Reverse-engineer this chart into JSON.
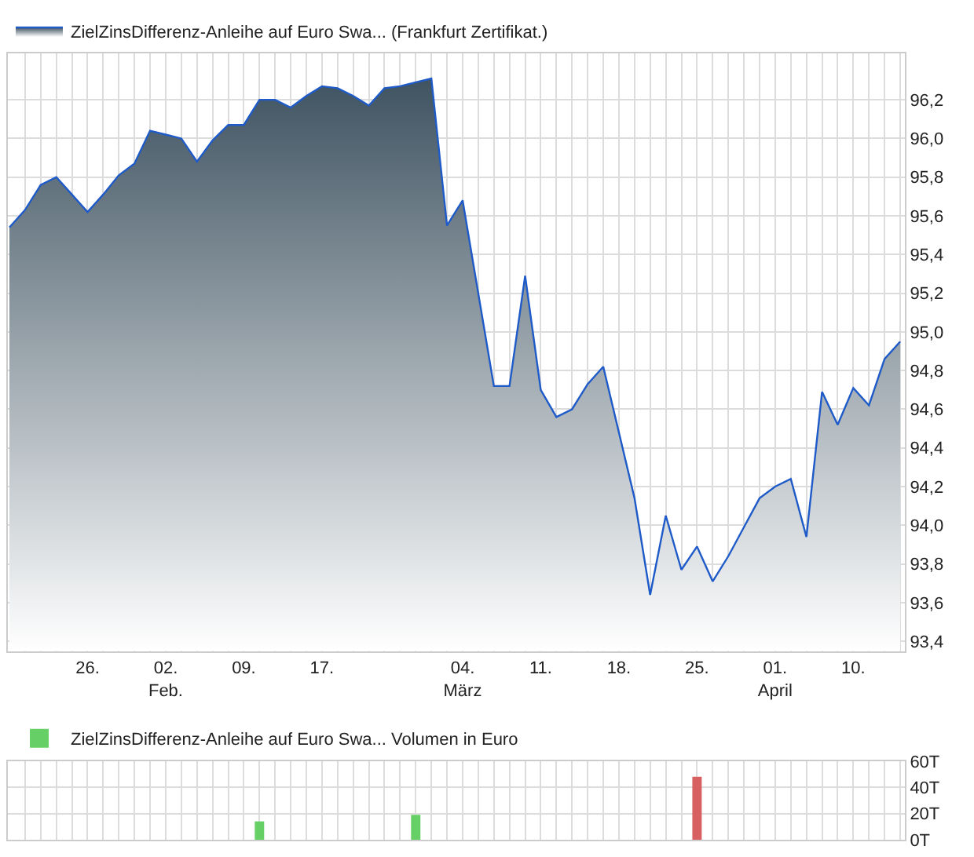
{
  "chart_data": [
    {
      "type": "area",
      "legend": "top left",
      "grid": true,
      "marker": "none",
      "categories": [
        null,
        null,
        null,
        null,
        null,
        "26.",
        null,
        null,
        null,
        null,
        "02.\nFeb.",
        null,
        null,
        null,
        null,
        "09.",
        null,
        null,
        null,
        null,
        "17.",
        null,
        null,
        null,
        null,
        null,
        null,
        null,
        null,
        "04.\nMärz",
        null,
        null,
        null,
        null,
        "11.",
        null,
        null,
        null,
        null,
        "18.",
        null,
        null,
        null,
        null,
        "25.",
        null,
        null,
        null,
        null,
        "01.\nApril",
        null,
        null,
        null,
        null,
        "10.",
        null,
        null,
        null
      ],
      "series": [
        {
          "name": "ZielZinsDifferenz-Anleihe auf Euro Swa... (Frankfurt Zertifikat.)",
          "color": "#1f5bc8",
          "values": [
            95.54,
            95.63,
            95.76,
            95.8,
            95.71,
            95.62,
            95.71,
            95.81,
            95.87,
            96.04,
            96.02,
            96.0,
            95.88,
            95.99,
            96.07,
            96.07,
            96.2,
            96.2,
            96.16,
            96.22,
            96.27,
            96.26,
            96.22,
            96.17,
            96.26,
            96.27,
            96.29,
            96.31,
            95.55,
            95.68,
            95.2,
            94.72,
            94.72,
            95.29,
            94.7,
            94.56,
            94.6,
            94.73,
            94.82,
            94.48,
            94.14,
            93.64,
            94.05,
            93.77,
            93.89,
            93.71,
            93.84,
            93.99,
            94.14,
            94.2,
            94.24,
            93.94,
            94.69,
            94.52,
            94.71,
            94.62,
            94.86,
            94.95
          ]
        }
      ],
      "ylim": [
        93.35,
        96.44
      ],
      "yticks": [
        {
          "value": 93.4,
          "label": "93,4"
        },
        {
          "value": 93.6,
          "label": "93,6"
        },
        {
          "value": 93.8,
          "label": "93,8"
        },
        {
          "value": 94.0,
          "label": "94,0"
        },
        {
          "value": 94.2,
          "label": "94,2"
        },
        {
          "value": 94.4,
          "label": "94,4"
        },
        {
          "value": 94.6,
          "label": "94,6"
        },
        {
          "value": 94.8,
          "label": "94,8"
        },
        {
          "value": 95.0,
          "label": "95,0"
        },
        {
          "value": 95.2,
          "label": "95,2"
        },
        {
          "value": 95.4,
          "label": "95,4"
        },
        {
          "value": 95.6,
          "label": "95,6"
        },
        {
          "value": 95.8,
          "label": "95,8"
        },
        {
          "value": 96.0,
          "label": "96,0"
        },
        {
          "value": 96.2,
          "label": "96,2"
        }
      ]
    },
    {
      "type": "bar",
      "legend": "top left",
      "grid": true,
      "tick_labels": "y",
      "categories": [
        null,
        null,
        null,
        null,
        null,
        null,
        null,
        null,
        null,
        null,
        null,
        null,
        null,
        null,
        null,
        null,
        null,
        null,
        null,
        null,
        null,
        null,
        null,
        null,
        null,
        null,
        null,
        null,
        null,
        null,
        null,
        null,
        null,
        null,
        null,
        null,
        null,
        null,
        null,
        null,
        null,
        null,
        null,
        null,
        null,
        null,
        null,
        null,
        null,
        null,
        null,
        null,
        null,
        null,
        null,
        null,
        null,
        null
      ],
      "series": [
        {
          "name": "ZielZinsDifferenz-Anleihe auf Euro Swa... Volumen in Euro",
          "color": "#66d066",
          "colors": [
            null,
            null,
            null,
            null,
            null,
            null,
            null,
            null,
            null,
            null,
            null,
            null,
            null,
            null,
            null,
            null,
            "#66d066",
            null,
            null,
            null,
            null,
            null,
            null,
            null,
            null,
            null,
            "#66d066",
            null,
            null,
            null,
            null,
            null,
            null,
            null,
            null,
            null,
            null,
            null,
            null,
            null,
            null,
            null,
            null,
            null,
            "#d96060",
            null,
            null,
            null,
            null,
            null,
            null,
            null,
            null,
            null,
            null,
            null,
            null,
            null
          ],
          "values": [
            null,
            null,
            null,
            null,
            null,
            null,
            null,
            null,
            null,
            null,
            null,
            null,
            null,
            null,
            null,
            null,
            14,
            null,
            null,
            null,
            null,
            null,
            null,
            null,
            null,
            null,
            19,
            null,
            null,
            null,
            null,
            null,
            null,
            null,
            null,
            null,
            null,
            null,
            null,
            null,
            null,
            null,
            null,
            null,
            48,
            null,
            null,
            null,
            null,
            null,
            null,
            null,
            null,
            null,
            null,
            null,
            null,
            null
          ]
        }
      ],
      "ylim": [
        0,
        60
      ],
      "yticks": [
        {
          "value": 0,
          "label": "0T"
        },
        {
          "value": 20,
          "label": "20T"
        },
        {
          "value": 40,
          "label": "40T"
        },
        {
          "value": 60,
          "label": "60T"
        }
      ]
    }
  ]
}
